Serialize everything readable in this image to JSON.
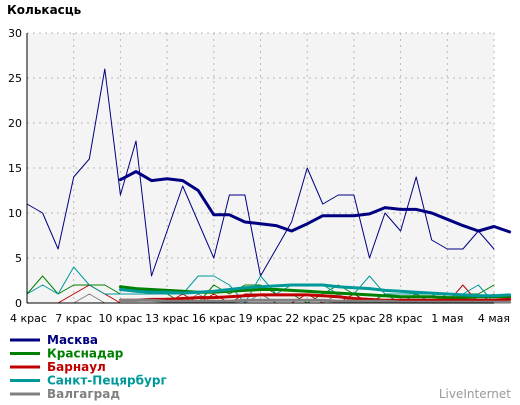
{
  "chart_data": {
    "type": "line",
    "title": "Колькасць",
    "watermark": "LiveInternet",
    "ylim": [
      0,
      30
    ],
    "yticks": [
      0,
      5,
      10,
      15,
      20,
      25,
      30
    ],
    "x_labels": [
      "4 крас",
      "7 крас",
      "10 крас",
      "13 крас",
      "16 крас",
      "19 крас",
      "22 крас",
      "25 крас",
      "28 крас",
      "1 мая",
      "4 мая"
    ],
    "series": [
      {
        "name": "Масква",
        "color": "#000080",
        "kind": "daily",
        "start": 0,
        "values": [
          11,
          10,
          6,
          14,
          16,
          26,
          12,
          18,
          3,
          8,
          13,
          9,
          5,
          12,
          12,
          3,
          6,
          9,
          15,
          11,
          12,
          12,
          5,
          10,
          8,
          14,
          7,
          6,
          6,
          8,
          6
        ]
      },
      {
        "name": "Масква",
        "color": "#000080",
        "kind": "average",
        "start": 6,
        "values": [
          13.7,
          14.6,
          13.6,
          13.8,
          13.6,
          12.5,
          9.8,
          9.8,
          9.0,
          8.8,
          8.6,
          8.0,
          8.8,
          9.7,
          9.7,
          9.7,
          9.9,
          10.6,
          10.4,
          10.4,
          10.0,
          9.3,
          8.6,
          8.0,
          8.5,
          7.9
        ]
      },
      {
        "name": "Краснадар",
        "color": "#008000",
        "kind": "daily",
        "start": 0,
        "values": [
          1,
          3,
          1,
          2,
          2,
          2,
          1,
          1,
          1,
          1,
          0,
          0,
          2,
          1,
          2,
          2,
          1,
          1,
          0,
          1,
          2,
          1,
          0,
          1,
          0,
          1,
          0,
          1,
          1,
          1,
          2
        ]
      },
      {
        "name": "Краснадар",
        "color": "#008000",
        "kind": "average",
        "start": 6,
        "values": [
          1.8,
          1.6,
          1.5,
          1.4,
          1.3,
          1.2,
          1.2,
          1.3,
          1.4,
          1.5,
          1.5,
          1.4,
          1.3,
          1.2,
          1.1,
          1.0,
          0.9,
          0.8,
          0.7,
          0.7,
          0.7,
          0.6,
          0.6,
          0.7,
          0.7,
          0.7
        ]
      },
      {
        "name": "Барнаул",
        "color": "#c00000",
        "kind": "daily",
        "start": 0,
        "values": [
          0,
          0,
          0,
          1,
          2,
          1,
          0,
          0,
          0,
          0,
          1,
          0,
          1,
          0,
          1,
          1,
          0,
          0,
          1,
          0,
          0,
          1,
          0,
          0,
          0,
          0,
          0,
          0,
          2,
          0,
          1
        ]
      },
      {
        "name": "Барнаул",
        "color": "#c00000",
        "kind": "average",
        "start": 6,
        "values": [
          0.3,
          0.3,
          0.4,
          0.4,
          0.5,
          0.6,
          0.6,
          0.7,
          0.8,
          0.9,
          0.9,
          0.9,
          0.9,
          0.8,
          0.7,
          0.5,
          0.4,
          0.3,
          0.3,
          0.3,
          0.3,
          0.3,
          0.3,
          0.3,
          0.3,
          0.4
        ]
      },
      {
        "name": "Санкт-Пецярбург",
        "color": "#009999",
        "kind": "daily",
        "start": 0,
        "values": [
          1,
          2,
          1,
          4,
          2,
          1,
          1,
          1,
          1,
          1,
          1,
          3,
          3,
          2,
          0,
          3,
          1,
          2,
          2,
          2,
          1,
          1,
          3,
          1,
          1,
          1,
          1,
          0,
          1,
          2,
          0
        ]
      },
      {
        "name": "Санкт-Пецярбург",
        "color": "#009999",
        "kind": "average",
        "start": 6,
        "values": [
          1.5,
          1.3,
          1.2,
          1.2,
          1.1,
          1.2,
          1.3,
          1.5,
          1.7,
          1.8,
          1.9,
          2.0,
          2.0,
          2.0,
          1.8,
          1.7,
          1.6,
          1.4,
          1.3,
          1.2,
          1.1,
          1.0,
          0.9,
          0.8,
          0.8,
          0.9
        ]
      },
      {
        "name": "Валгаград",
        "color": "#808080",
        "kind": "daily",
        "start": 0,
        "values": [
          0,
          0,
          0,
          0,
          1,
          0,
          0,
          0,
          0,
          0,
          0,
          1,
          0,
          0,
          0,
          1,
          0,
          0,
          0,
          0,
          1,
          0,
          0,
          0,
          0,
          0,
          0,
          0,
          0,
          0,
          0
        ]
      },
      {
        "name": "Валгаград",
        "color": "#808080",
        "kind": "average",
        "start": 6,
        "values": [
          0.3,
          0.3,
          0.3,
          0.2,
          0.2,
          0.2,
          0.2,
          0.2,
          0.3,
          0.3,
          0.3,
          0.3,
          0.3,
          0.3,
          0.2,
          0.2,
          0.2,
          0.2,
          0.1,
          0.1,
          0.1,
          0.1,
          0.1,
          0.1,
          0.1,
          0.1
        ]
      }
    ],
    "legend": [
      {
        "name": "Масква",
        "color": "#000080"
      },
      {
        "name": "Краснадар",
        "color": "#008000"
      },
      {
        "name": "Барнаул",
        "color": "#c00000"
      },
      {
        "name": "Санкт-Пецярбург",
        "color": "#009999"
      },
      {
        "name": "Валгаград",
        "color": "#808080"
      }
    ],
    "grid": true,
    "legend_position": "bottom-left"
  }
}
